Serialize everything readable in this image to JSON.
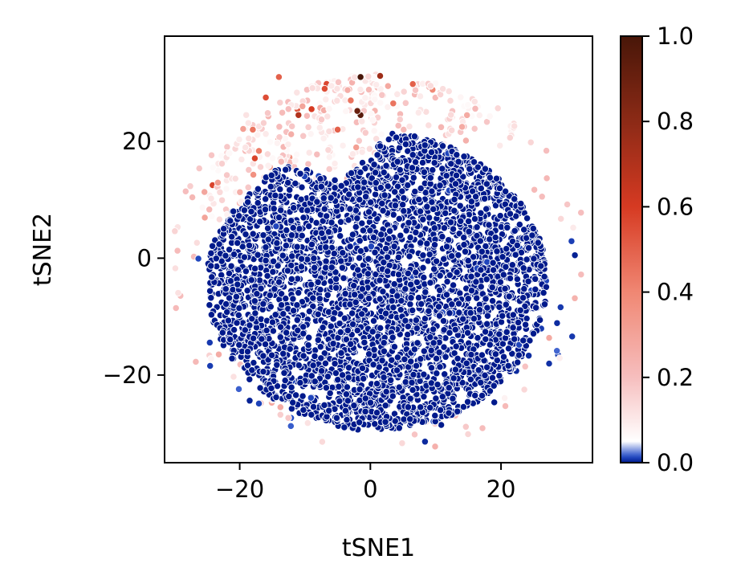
{
  "chart_data": {
    "type": "scatter",
    "title": "",
    "xlabel": "tSNE1",
    "ylabel": "tSNE2",
    "xlim": [
      -31.5,
      34
    ],
    "ylim": [
      -35,
      38
    ],
    "xticks": [
      -20,
      0,
      20
    ],
    "yticks": [
      -20,
      0,
      20
    ],
    "xtick_labels": [
      "−20",
      "0",
      "20"
    ],
    "ytick_labels": [
      "−20",
      "0",
      "20"
    ],
    "grid": false,
    "legend": "none",
    "point_colormap": "blue-white-red diverging (dark blue at 0, white near 0.05, red to dark brown at 1)",
    "colorbar": {
      "range": [
        0.0,
        1.0
      ],
      "ticks": [
        0.0,
        0.2,
        0.4,
        0.6,
        0.8,
        1.0
      ],
      "tick_labels": [
        "0.0",
        "0.2",
        "0.4",
        "0.6",
        "0.8",
        "1.0"
      ],
      "colors": [
        "#0022aa",
        "#ffffff",
        "#f7c5c5",
        "#f08c78",
        "#d63a22",
        "#8a2a15",
        "#4a1608"
      ]
    },
    "clusters": [
      {
        "name": "main dense disc",
        "center": [
          1,
          -4
        ],
        "radius": 25,
        "value_range": [
          0.0,
          0.0
        ],
        "color": "#0022aa"
      },
      {
        "name": "upper cap",
        "region": "x from -25 to 13, y from 5 to 35",
        "value_range": [
          0.05,
          1.0
        ],
        "color": "#f4b0b0"
      },
      {
        "name": "outer ring (sparse)",
        "center": [
          1,
          0
        ],
        "radius": 31,
        "value_range": [
          0.0,
          0.3
        ]
      }
    ],
    "highlighted_points": [
      {
        "x": -1.5,
        "y": 31,
        "value": 1.0
      },
      {
        "x": -1.5,
        "y": 24.5,
        "value": 0.95
      },
      {
        "x": -2,
        "y": 25.2,
        "value": 0.9
      },
      {
        "x": -11,
        "y": 24.5,
        "value": 0.7
      },
      {
        "x": 1.5,
        "y": 31.2,
        "value": 0.75
      },
      {
        "x": -9,
        "y": 25.5,
        "value": 0.6
      },
      {
        "x": -16,
        "y": 27.5,
        "value": 0.55
      },
      {
        "x": -7,
        "y": 29,
        "value": 0.55
      },
      {
        "x": 6.5,
        "y": 29.8,
        "value": 0.5
      },
      {
        "x": -14,
        "y": 31,
        "value": 0.5
      },
      {
        "x": -5,
        "y": 22,
        "value": 0.5
      },
      {
        "x": 3.5,
        "y": 26.5,
        "value": 0.45
      },
      {
        "x": -18,
        "y": 22,
        "value": 0.45
      },
      {
        "x": -3,
        "y": 27,
        "value": 0.45
      }
    ]
  }
}
